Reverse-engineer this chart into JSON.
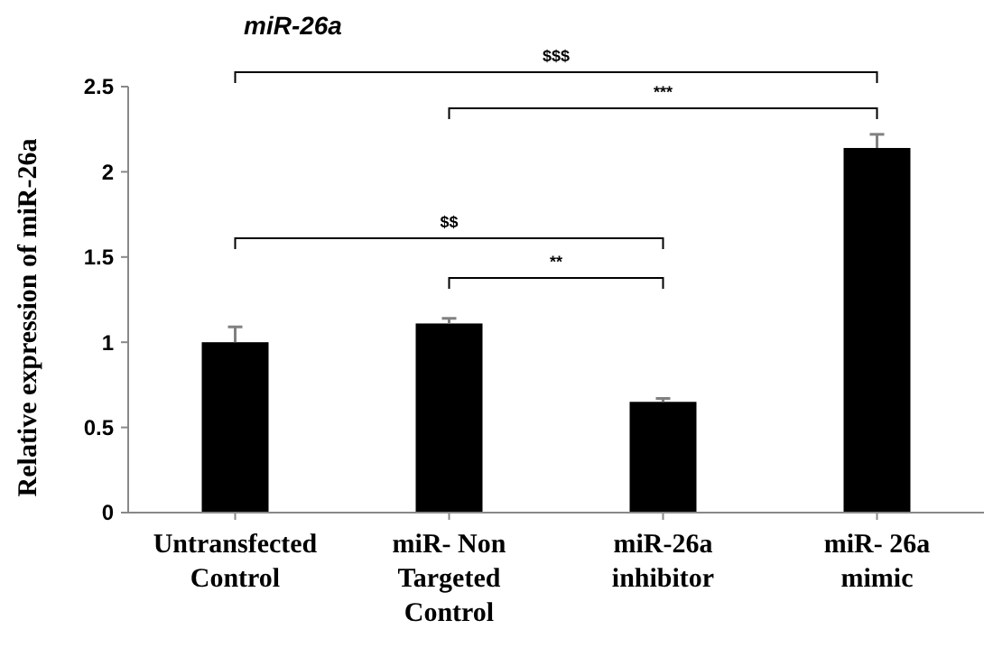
{
  "chart_data": {
    "type": "bar",
    "title": "miR-26a",
    "ylabel": "Relative expression of miR-26a",
    "categories": [
      "Untransfected Control",
      "miR- Non Targeted Control",
      "miR-26a inhibitor",
      "miR- 26a mimic"
    ],
    "values": [
      1.0,
      1.11,
      0.65,
      2.14
    ],
    "errors": [
      0.09,
      0.03,
      0.02,
      0.08
    ],
    "color": "#000000",
    "ylim": [
      0,
      2.5
    ],
    "yticks": [
      0,
      0.5,
      1,
      1.5,
      2,
      2.5
    ],
    "grid": false,
    "annotations": [
      "$$$",
      "***",
      "$$",
      "**"
    ]
  }
}
